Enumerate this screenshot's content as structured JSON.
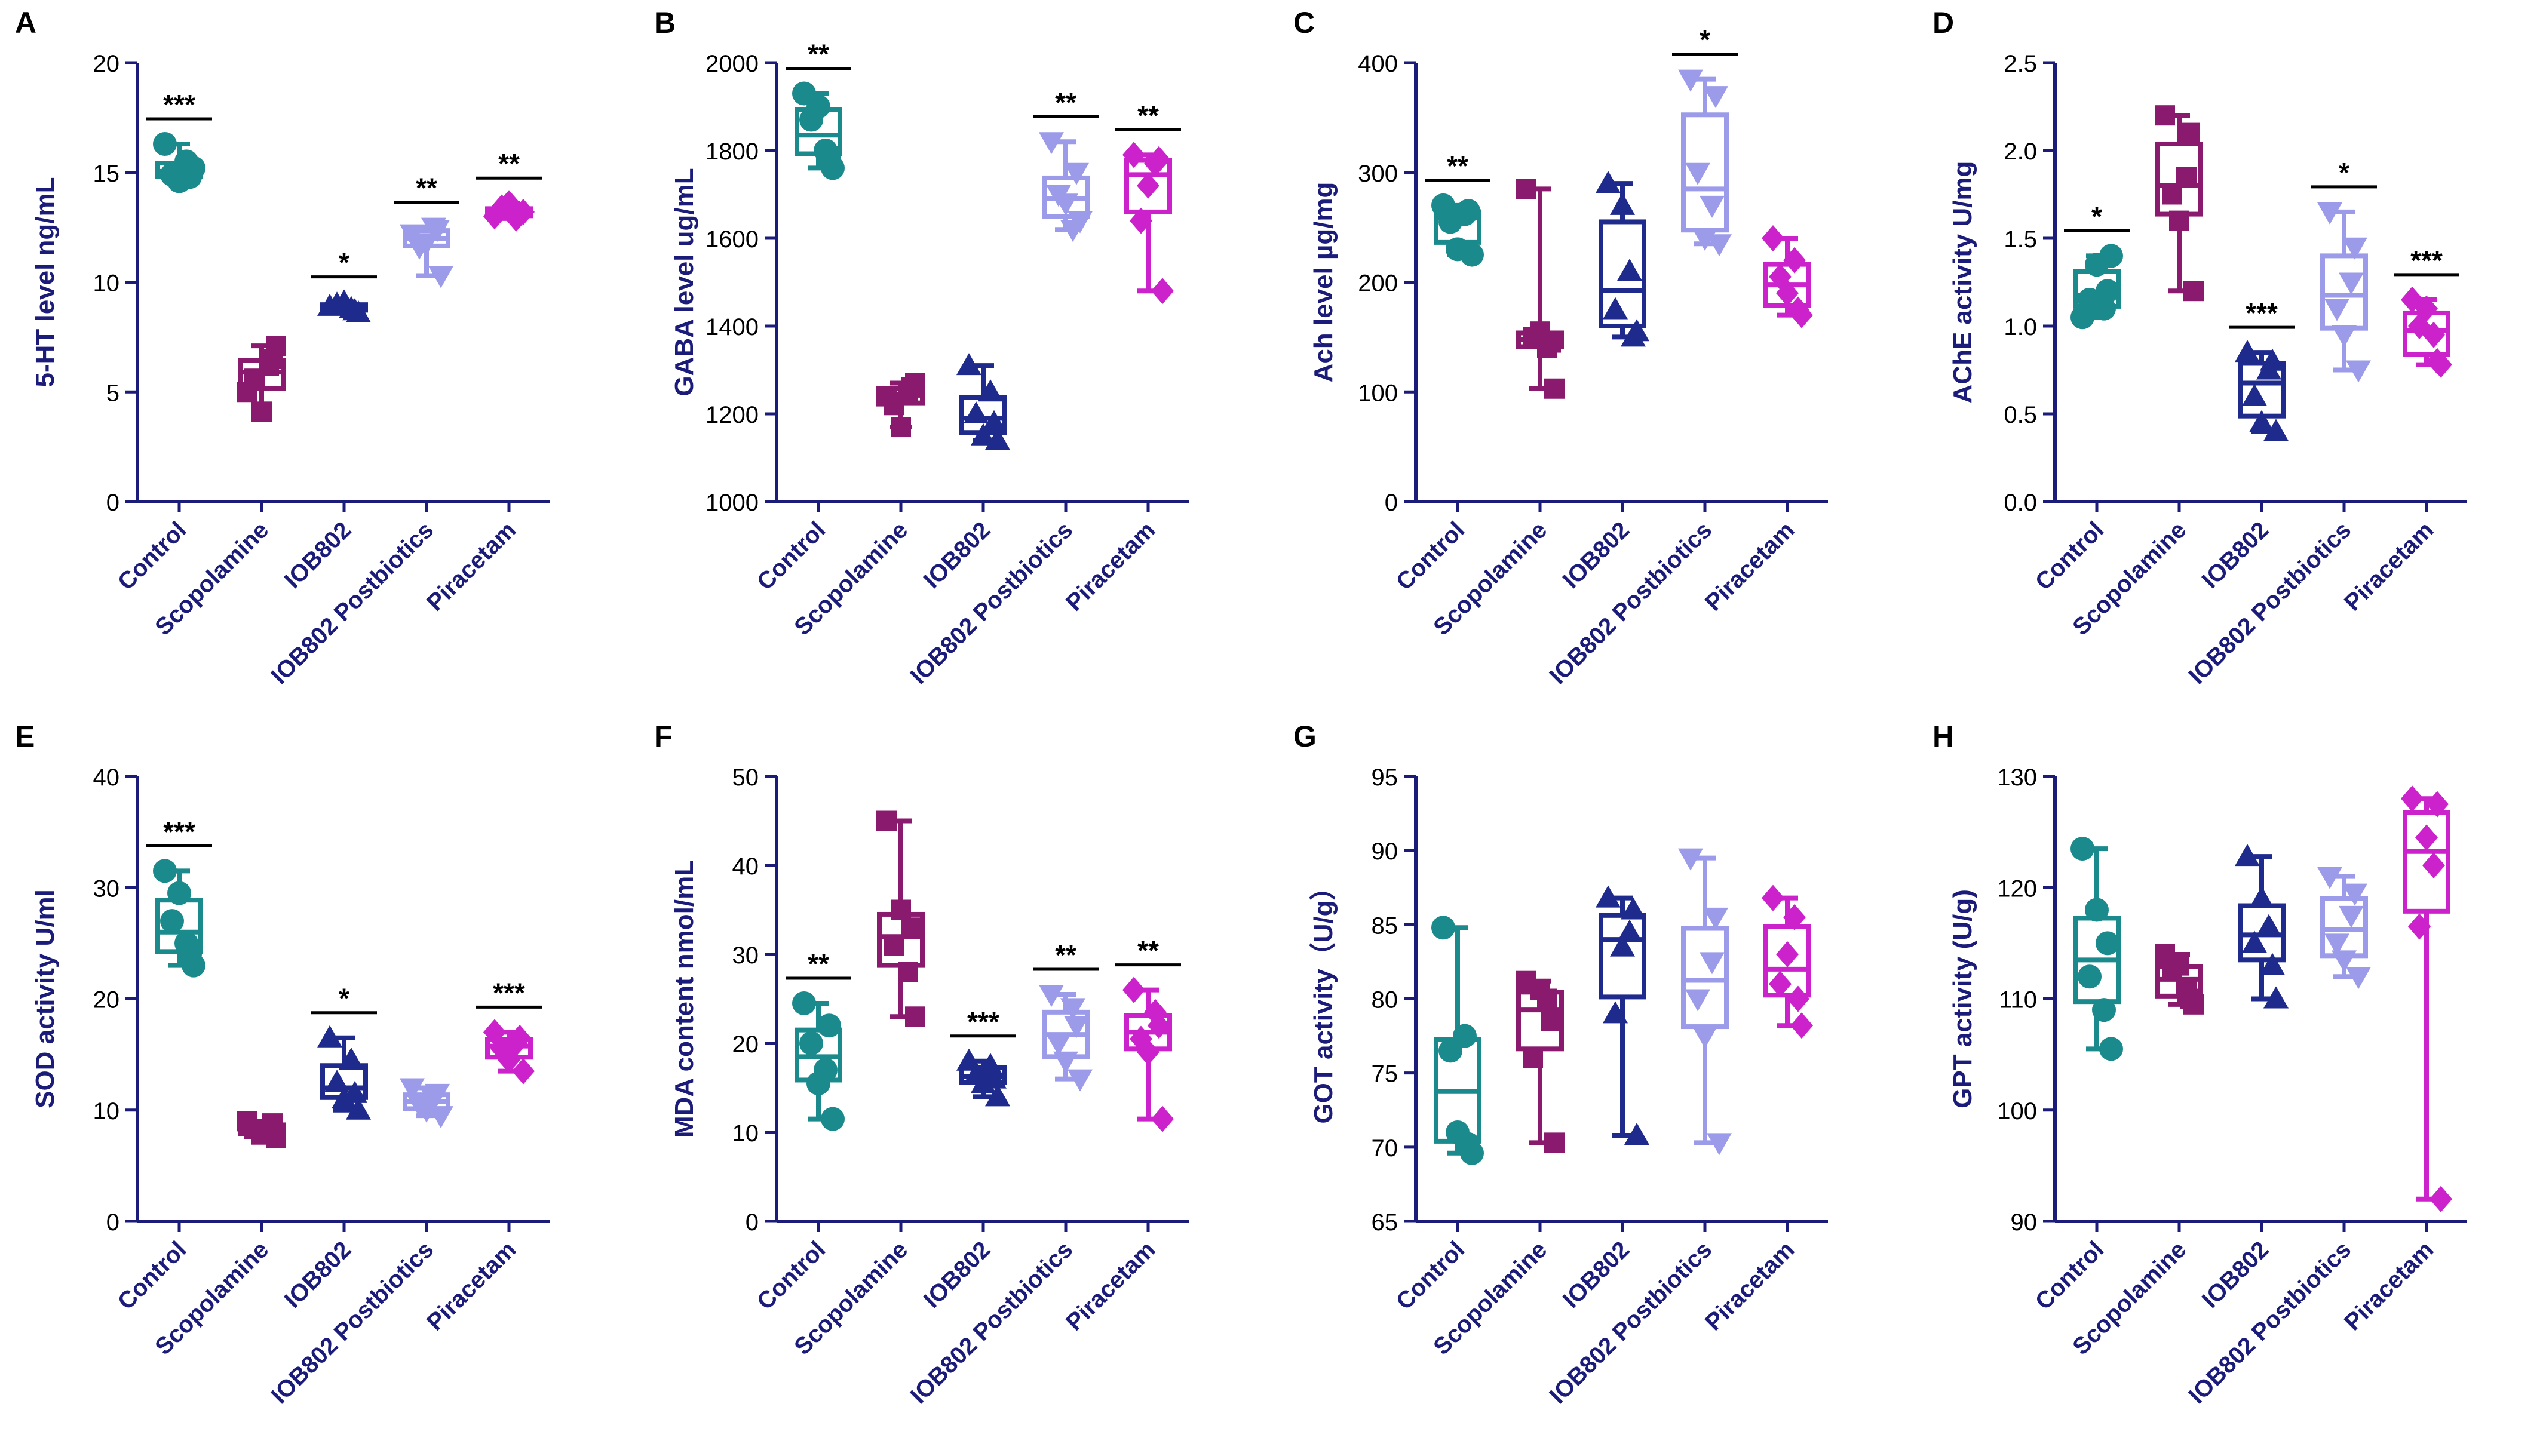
{
  "figure": {
    "groups": [
      "Control",
      "Scopolamine",
      "IOB802",
      "IOB802 Postbiotics",
      "Piracetam"
    ],
    "colors": [
      "#1a8a8c",
      "#8a1a6e",
      "#1e2a8c",
      "#9b9bea",
      "#cc22cc"
    ],
    "markers": [
      "circle",
      "square",
      "triangle-up",
      "triangle-down",
      "diamond"
    ]
  },
  "chart_data": [
    {
      "panel": "A",
      "type": "box",
      "ylabel": "5-HT level ng/mL",
      "ylim": [
        0,
        20
      ],
      "ticks": [
        "0",
        "5",
        "10",
        "15",
        "20"
      ],
      "tick_values": [
        0,
        5,
        10,
        15,
        20
      ],
      "categories": [
        "Control",
        "Scopolamine",
        "IOB802",
        "IOB802 Postbiotics",
        "Piracetam"
      ],
      "points": [
        [
          16.3,
          15.2,
          14.9,
          15.5,
          14.6,
          14.8
        ],
        [
          5.0,
          7.1,
          5.6,
          6.2,
          4.1,
          6.5
        ],
        [
          8.9,
          8.6,
          9.0,
          8.8,
          9.1,
          8.7
        ],
        [
          12.2,
          10.3,
          11.6,
          12.5,
          11.8,
          12.4
        ],
        [
          13.0,
          13.2,
          13.4,
          12.9,
          13.6,
          13.1
        ]
      ],
      "stars": [
        "***",
        "",
        "*",
        "**",
        "**"
      ]
    },
    {
      "panel": "B",
      "type": "box",
      "ylabel": "GABA level ug/mL",
      "ylim": [
        1000,
        2000
      ],
      "ticks": [
        "1000",
        "1200",
        "1400",
        "1600",
        "1800",
        "2000"
      ],
      "tick_values": [
        1000,
        1200,
        1400,
        1600,
        1800,
        2000
      ],
      "categories": [
        "Control",
        "Scopolamine",
        "IOB802",
        "IOB802 Postbiotics",
        "Piracetam"
      ],
      "points": [
        [
          1930,
          1760,
          1870,
          1800,
          1900,
          1790
        ],
        [
          1240,
          1270,
          1220,
          1250,
          1170,
          1260
        ],
        [
          1310,
          1140,
          1200,
          1250,
          1150,
          1180
        ],
        [
          1820,
          1640,
          1700,
          1620,
          1680,
          1750
        ],
        [
          1790,
          1480,
          1640,
          1770,
          1720,
          1780
        ]
      ],
      "stars": [
        "**",
        "",
        "",
        "**",
        "**"
      ]
    },
    {
      "panel": "C",
      "type": "box",
      "ylabel": "Ach level µg/mg",
      "ylim": [
        0,
        400
      ],
      "ticks": [
        "0",
        "100",
        "200",
        "300",
        "400"
      ],
      "tick_values": [
        0,
        100,
        200,
        300,
        400
      ],
      "categories": [
        "Control",
        "Scopolamine",
        "IOB802",
        "IOB802 Postbiotics",
        "Piracetam"
      ],
      "points": [
        [
          270,
          225,
          255,
          262,
          230,
          265
        ],
        [
          285,
          103,
          150,
          140,
          155,
          145
        ],
        [
          290,
          155,
          175,
          210,
          270,
          150
        ],
        [
          385,
          235,
          300,
          270,
          240,
          370
        ],
        [
          240,
          170,
          205,
          220,
          190,
          175
        ]
      ],
      "stars": [
        "**",
        "",
        "",
        "*",
        ""
      ]
    },
    {
      "panel": "D",
      "type": "box",
      "ylabel": "AChE activity U/mg",
      "ylim": [
        0,
        2.5
      ],
      "ticks": [
        "0.0",
        "0.5",
        "1.0",
        "1.5",
        "2.0",
        "2.5"
      ],
      "tick_values": [
        0,
        0.5,
        1.0,
        1.5,
        2.0,
        2.5
      ],
      "categories": [
        "Control",
        "Scopolamine",
        "IOB802",
        "IOB802 Postbiotics",
        "Piracetam"
      ],
      "points": [
        [
          1.05,
          1.4,
          1.15,
          1.1,
          1.35,
          1.2
        ],
        [
          2.2,
          1.2,
          1.75,
          1.85,
          1.6,
          2.1
        ],
        [
          0.85,
          0.4,
          0.6,
          0.75,
          0.45,
          0.8
        ],
        [
          1.65,
          0.75,
          1.1,
          1.25,
          0.95,
          1.45
        ],
        [
          1.15,
          0.78,
          1.0,
          0.95,
          1.1,
          0.8
        ]
      ],
      "stars": [
        "*",
        "",
        "***",
        "*",
        "***"
      ]
    },
    {
      "panel": "E",
      "type": "box",
      "ylabel": "SOD activity U/ml",
      "ylim": [
        0,
        40
      ],
      "ticks": [
        "0",
        "10",
        "20",
        "30",
        "40"
      ],
      "tick_values": [
        0,
        10,
        20,
        30,
        40
      ],
      "categories": [
        "Control",
        "Scopolamine",
        "IOB802",
        "IOB802 Postbiotics",
        "Piracetam"
      ],
      "points": [
        [
          31.5,
          23.0,
          27.0,
          25.0,
          29.5,
          24.0
        ],
        [
          9.0,
          7.5,
          8.3,
          8.0,
          7.8,
          8.8
        ],
        [
          16.5,
          10.0,
          12.5,
          14.5,
          11.0,
          11.5
        ],
        [
          12.0,
          9.5,
          10.5,
          11.0,
          10.0,
          11.5
        ],
        [
          17.0,
          13.5,
          15.5,
          16.0,
          14.5,
          16.5
        ]
      ],
      "stars": [
        "***",
        "",
        "*",
        "",
        "***"
      ]
    },
    {
      "panel": "F",
      "type": "box",
      "ylabel": "MDA content nmol/mL",
      "ylim": [
        0,
        50
      ],
      "ticks": [
        "0",
        "10",
        "20",
        "30",
        "40",
        "50"
      ],
      "tick_values": [
        0,
        10,
        20,
        30,
        40,
        50
      ],
      "categories": [
        "Control",
        "Scopolamine",
        "IOB802",
        "IOB802 Postbiotics",
        "Piracetam"
      ],
      "points": [
        [
          24.5,
          11.5,
          20.0,
          17.0,
          15.5,
          22.0
        ],
        [
          45.0,
          23.0,
          31.0,
          28.0,
          35.0,
          33.0
        ],
        [
          18.0,
          14.0,
          16.5,
          17.5,
          15.5,
          16.0
        ],
        [
          25.5,
          16.0,
          20.0,
          24.0,
          18.0,
          22.0
        ],
        [
          26.0,
          11.5,
          20.5,
          23.5,
          19.0,
          22.0
        ]
      ],
      "stars": [
        "**",
        "",
        "***",
        "**",
        "**"
      ]
    },
    {
      "panel": "G",
      "type": "box",
      "ylabel": "GOT activity（U/g）",
      "ylim": [
        65,
        95
      ],
      "ticks": [
        "65",
        "70",
        "75",
        "80",
        "85",
        "90",
        "95"
      ],
      "tick_values": [
        65,
        70,
        75,
        80,
        85,
        90,
        95
      ],
      "categories": [
        "Control",
        "Scopolamine",
        "IOB802",
        "IOB802 Postbiotics",
        "Piracetam"
      ],
      "points": [
        [
          84.8,
          69.6,
          76.5,
          77.5,
          71.0,
          70.2
        ],
        [
          81.2,
          70.3,
          76.0,
          80.0,
          80.6,
          78.5
        ],
        [
          86.8,
          70.8,
          79.0,
          84.5,
          83.5,
          86.0
        ],
        [
          89.5,
          70.3,
          80.0,
          82.5,
          77.5,
          85.5
        ],
        [
          86.8,
          78.2,
          81.0,
          85.5,
          83.0,
          80.0
        ]
      ],
      "stars": [
        "",
        "",
        "",
        "",
        ""
      ]
    },
    {
      "panel": "H",
      "type": "box",
      "ylabel": "GPT activity (U/g)",
      "ylim": [
        90,
        130
      ],
      "ticks": [
        "90",
        "100",
        "110",
        "120",
        "130"
      ],
      "tick_values": [
        90,
        100,
        110,
        120,
        130
      ],
      "categories": [
        "Control",
        "Scopolamine",
        "IOB802",
        "IOB802 Postbiotics",
        "Piracetam"
      ],
      "points": [
        [
          123.5,
          105.5,
          112.0,
          109.0,
          118.0,
          115.0
        ],
        [
          114.0,
          109.5,
          112.5,
          111.0,
          113.0,
          110.0
        ],
        [
          122.8,
          110.0,
          115.0,
          116.5,
          119.0,
          113.0
        ],
        [
          121.0,
          112.0,
          115.0,
          117.5,
          113.5,
          119.5
        ],
        [
          128.0,
          92.0,
          116.5,
          122.0,
          124.5,
          127.5
        ]
      ],
      "stars": [
        "",
        "",
        "",
        "",
        ""
      ]
    }
  ]
}
